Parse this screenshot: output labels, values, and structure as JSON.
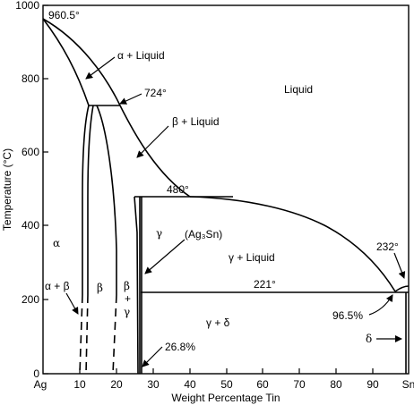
{
  "axes": {
    "y_title": "Temperature (°C)",
    "x_title": "Weight Percentage Tin",
    "y_ticks": [
      "0",
      "200",
      "400",
      "600",
      "800",
      "1000"
    ],
    "x_ticks": [
      "Ag",
      "10",
      "20",
      "30",
      "40",
      "50",
      "60",
      "70",
      "80",
      "90",
      "Sn"
    ]
  },
  "labels": {
    "melt_ag": "960.5°",
    "t724": "724°",
    "t480": "480°",
    "t232": "232°",
    "t221": "221°",
    "pct965": "96.5%",
    "pct268": "26.8%",
    "liquid": "Liquid",
    "alpha_liquid": "α + Liquid",
    "beta_liquid": "β + Liquid",
    "gamma_liquid": "γ + Liquid",
    "ag3sn": "(Ag₃Sn)",
    "alpha": "α",
    "alpha_beta": "α + β",
    "beta": "β",
    "beta_gamma": [
      "β",
      "+",
      "γ"
    ],
    "gamma": "γ",
    "gamma_delta": "γ + δ",
    "delta": "δ"
  }
}
